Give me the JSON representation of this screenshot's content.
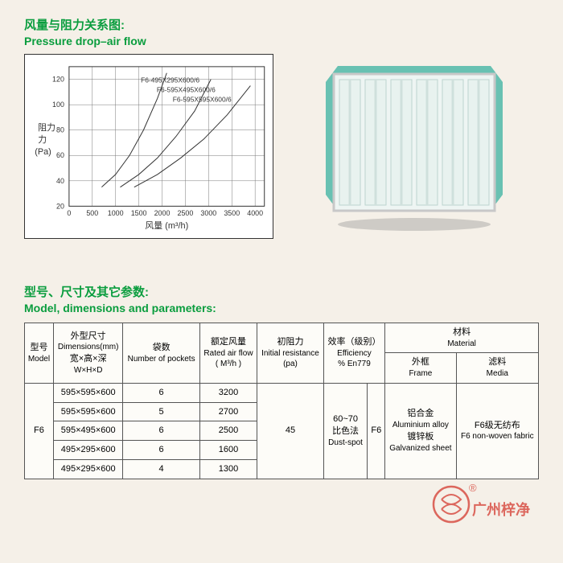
{
  "section1": {
    "title_cn": "风量与阻力关系图:",
    "title_en": "Pressure drop–air flow"
  },
  "chart": {
    "type": "line",
    "x_axis_label": "风量  (m³/h)",
    "y_axis_label_cn": "阻力",
    "y_axis_label_en": "(Pa)",
    "xlim": [
      0,
      4200
    ],
    "ylim": [
      20,
      130
    ],
    "xticks": [
      0,
      500,
      1000,
      1500,
      2000,
      2500,
      3000,
      3500,
      4000
    ],
    "yticks": [
      20,
      40,
      60,
      80,
      100,
      120
    ],
    "grid_color": "#777",
    "background_color": "#ffffff",
    "line_color": "#333333",
    "line_width": 1,
    "tick_fontsize": 9,
    "label_fontsize": 11,
    "series": [
      {
        "label": "F6-495X295X600/6",
        "points": [
          [
            700,
            35
          ],
          [
            1000,
            45
          ],
          [
            1300,
            60
          ],
          [
            1600,
            80
          ],
          [
            1900,
            105
          ],
          [
            2100,
            125
          ]
        ]
      },
      {
        "label": "F6-595X495X600/6",
        "points": [
          [
            1100,
            35
          ],
          [
            1500,
            45
          ],
          [
            1900,
            58
          ],
          [
            2300,
            75
          ],
          [
            2700,
            95
          ],
          [
            3050,
            120
          ]
        ]
      },
      {
        "label": "F6-595X595X600/6",
        "points": [
          [
            1400,
            35
          ],
          [
            1900,
            45
          ],
          [
            2400,
            58
          ],
          [
            2900,
            73
          ],
          [
            3400,
            92
          ],
          [
            3900,
            115
          ]
        ]
      }
    ]
  },
  "section2": {
    "title_cn": "型号、尺寸及其它参数:",
    "title_en": "Model, dimensions and parameters:"
  },
  "table": {
    "headers": {
      "model": {
        "cn": "型号",
        "en": "Model"
      },
      "dimensions": {
        "cn": "外型尺寸",
        "en": "Dimensions(mm)",
        "sub_cn": "宽×高×深",
        "sub_en": "W×H×D"
      },
      "pockets": {
        "cn": "袋数",
        "en": "Number of pockets"
      },
      "airflow": {
        "cn": "额定风量",
        "en": "Rated air flow",
        "unit": "( M³/h )"
      },
      "resistance": {
        "cn": "初阻力",
        "en": "Initial resistance",
        "unit": "(pa)"
      },
      "efficiency": {
        "cn": "效率（级别）",
        "en": "Efficiency",
        "sub": "% En779"
      },
      "material": {
        "cn": "材料",
        "en": "Material"
      },
      "frame": {
        "cn": "外框",
        "en": "Frame"
      },
      "media": {
        "cn": "滤料",
        "en": "Media"
      }
    },
    "model": "F6",
    "rows": [
      {
        "dim": "595×595×600",
        "pockets": "6",
        "airflow": "3200"
      },
      {
        "dim": "595×595×600",
        "pockets": "5",
        "airflow": "2700"
      },
      {
        "dim": "595×495×600",
        "pockets": "6",
        "airflow": "2500"
      },
      {
        "dim": "495×295×600",
        "pockets": "6",
        "airflow": "1600"
      },
      {
        "dim": "495×295×600",
        "pockets": "4",
        "airflow": "1300"
      }
    ],
    "resistance": "45",
    "eff_range": "60~70",
    "eff_method_cn": "比色法",
    "eff_method_en": "Dust-spot",
    "eff_class": "F6",
    "frame_cn1": "铝合金",
    "frame_en1": "Aluminium alloy",
    "frame_cn2": "镀锌板",
    "frame_en2": "Galvanized sheet",
    "media_cn": "F6级无纺布",
    "media_en": "F6 non-woven fabric"
  },
  "product": {
    "pocket_color": "#4fb8a8",
    "frame_color": "#c8c8c8",
    "shadow_color": "#888"
  },
  "watermark": {
    "text": "广州梓净",
    "color": "#d43a2f",
    "reg": "®"
  }
}
